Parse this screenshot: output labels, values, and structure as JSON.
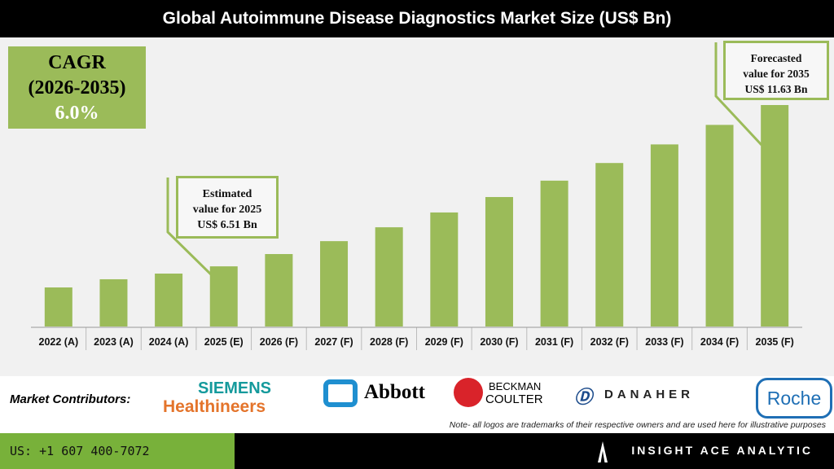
{
  "title": "Global Autoimmune Disease Diagnostics Market Size (US$ Bn)",
  "cagr": {
    "label": "CAGR",
    "period": "(2026-2035)",
    "value": "6.0%"
  },
  "callouts": {
    "estimated": {
      "line1": "Estimated",
      "line2": "value for 2025",
      "line3": "US$ 6.51 Bn"
    },
    "forecasted": {
      "line1": "Forecasted",
      "line2": "value for 2035",
      "line3": "US$ 11.63 Bn"
    }
  },
  "chart_data": {
    "type": "bar",
    "title": "Global Autoimmune Disease Diagnostics Market Size (US$ Bn)",
    "categories": [
      "2022 (A)",
      "2023 (A)",
      "2024 (A)",
      "2025 (E)",
      "2026 (F)",
      "2027 (F)",
      "2028 (F)",
      "2029 (F)",
      "2030 (F)",
      "2031 (F)",
      "2032 (F)",
      "2033 (F)",
      "2034 (F)",
      "2035 (F)"
    ],
    "values": [
      5.84,
      6.1,
      6.28,
      6.51,
      6.9,
      7.31,
      7.75,
      8.22,
      8.71,
      9.23,
      9.79,
      10.38,
      11.0,
      11.63
    ],
    "ylim": [
      4.6,
      11.63
    ],
    "grid": false,
    "bar_color": "#9bbb59"
  },
  "contributors": {
    "label": "Market Contributors:",
    "logos": [
      "SIEMENS",
      "Healthineers",
      "Abbott",
      "BECKMAN",
      "COULTER",
      "DANAHER",
      "Roche"
    ],
    "note": "Note- all logos are trademarks of their respective owners and are used here for illustrative purposes"
  },
  "footer": {
    "phone": "US: +1 607 400-7072",
    "brand": "INSIGHT ACE ANALYTIC",
    "accent": "#78b13a"
  }
}
